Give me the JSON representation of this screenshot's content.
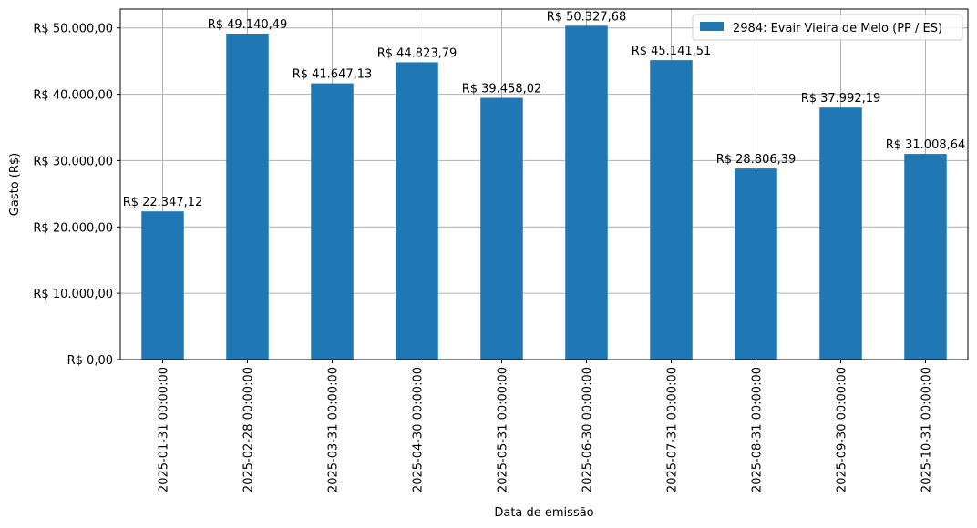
{
  "chart_data": {
    "type": "bar",
    "xlabel": "Data de emissão",
    "ylabel": "Gasto (R$)",
    "categories": [
      "2025-01-31 00:00:00",
      "2025-02-28 00:00:00",
      "2025-03-31 00:00:00",
      "2025-04-30 00:00:00",
      "2025-05-31 00:00:00",
      "2025-06-30 00:00:00",
      "2025-07-31 00:00:00",
      "2025-08-31 00:00:00",
      "2025-09-30 00:00:00",
      "2025-10-31 00:00:00"
    ],
    "series": [
      {
        "name": "2984: Evair Vieira de Melo (PP / ES)",
        "color": "#1f77b4",
        "values": [
          22347.12,
          49140.49,
          41647.13,
          44823.79,
          39458.02,
          50327.68,
          45141.51,
          28806.39,
          37992.19,
          31008.64
        ]
      }
    ],
    "data_labels": [
      "R$ 22.347,12",
      "R$ 49.140,49",
      "R$ 41.647,13",
      "R$ 44.823,79",
      "R$ 39.458,02",
      "R$ 50.327,68",
      "R$ 45.141,51",
      "R$ 28.806,39",
      "R$ 37.992,19",
      "R$ 31.008,64"
    ],
    "yticks": [
      0,
      10000,
      20000,
      30000,
      40000,
      50000
    ],
    "ytick_labels": [
      "R$ 0,00",
      "R$ 10.000,00",
      "R$ 20.000,00",
      "R$ 30.000,00",
      "R$ 40.000,00",
      "R$ 50.000,00"
    ],
    "ylim": [
      0,
      52844.06
    ],
    "grid": true,
    "legend_position": "top-right"
  }
}
